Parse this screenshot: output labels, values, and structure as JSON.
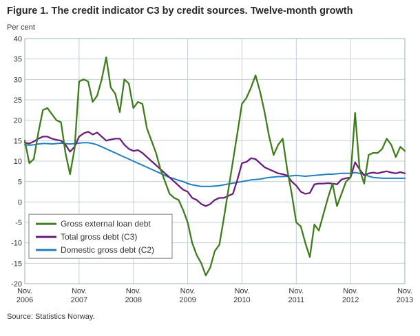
{
  "title": "Figure 1. The credit indicator C3 by credit sources. Twelve-month growth",
  "y_axis_label": "Per cent",
  "source": "Source: Statistics Norway.",
  "colors": {
    "grid": "#c3d0da",
    "border": "#9db0bd",
    "tick_text": "#333333",
    "legend_border": "#7f7f7f"
  },
  "chart_data": {
    "type": "line",
    "title": "Figure 1. The credit indicator C3 by credit sources. Twelve-month growth",
    "ylabel": "Per cent",
    "ylim": [
      -20,
      40
    ],
    "y_tick_step": 5,
    "grid": true,
    "legend_position": "inside-lower-left",
    "x_tick_month": "Nov.",
    "x_tick_years": [
      "2006",
      "2007",
      "2008",
      "2009",
      "2010",
      "2011",
      "2012",
      "2013"
    ],
    "x_tick_positions": [
      0,
      12,
      24,
      36,
      48,
      60,
      72,
      84
    ],
    "x_unit": "monthly points from Nov. 2006 to Nov. 2013",
    "series": [
      {
        "name": "Gross external loan debt",
        "color": "#3f7d1c",
        "values": [
          15.0,
          9.5,
          10.5,
          17.0,
          22.5,
          23.0,
          21.5,
          20.0,
          19.5,
          12.0,
          6.8,
          13.0,
          29.5,
          30.0,
          29.5,
          24.5,
          26.0,
          30.0,
          35.4,
          28.0,
          26.5,
          22.0,
          30.0,
          29.0,
          23.0,
          24.5,
          24.0,
          18.0,
          15.0,
          12.0,
          8.0,
          5.0,
          2.0,
          1.0,
          0.5,
          -2.0,
          -5.0,
          -10.0,
          -13.0,
          -15.0,
          -18.0,
          -16.0,
          -12.0,
          -10.5,
          -4.0,
          3.0,
          10.0,
          17.0,
          24.0,
          25.5,
          28.0,
          31.0,
          27.0,
          22.0,
          16.0,
          11.5,
          14.0,
          15.5,
          8.0,
          2.0,
          -5.0,
          -6.0,
          -10.0,
          -13.5,
          -5.5,
          -7.0,
          -3.0,
          1.0,
          4.5,
          -1.0,
          2.0,
          5.0,
          6.0,
          21.8,
          8.0,
          4.5,
          11.5,
          12.0,
          12.0,
          13.0,
          15.5,
          14.0,
          11.0,
          13.5,
          12.5
        ]
      },
      {
        "name": "Total gross debt (C3)",
        "color": "#6a1f7b",
        "values": [
          14.5,
          14.3,
          14.8,
          15.5,
          16.0,
          16.0,
          15.5,
          15.2,
          15.0,
          14.0,
          12.3,
          13.5,
          16.0,
          16.8,
          17.2,
          16.5,
          17.0,
          16.0,
          15.0,
          15.3,
          15.5,
          15.5,
          14.0,
          13.0,
          12.5,
          12.7,
          12.0,
          11.0,
          10.0,
          9.0,
          8.0,
          7.0,
          6.0,
          5.0,
          4.0,
          3.0,
          2.5,
          1.0,
          0.5,
          -0.5,
          -1.0,
          -0.5,
          0.5,
          1.0,
          1.0,
          1.5,
          2.0,
          5.5,
          9.5,
          9.8,
          10.7,
          10.5,
          9.5,
          8.5,
          8.0,
          7.5,
          7.0,
          6.8,
          6.5,
          5.0,
          4.0,
          2.5,
          2.0,
          2.2,
          4.3,
          4.5,
          4.5,
          4.6,
          4.5,
          4.3,
          5.5,
          5.8,
          6.0,
          9.7,
          8.0,
          6.5,
          7.0,
          7.2,
          7.0,
          7.3,
          7.5,
          7.2,
          7.0,
          7.3,
          7.0
        ]
      },
      {
        "name": "Domestic gross debt (C2)",
        "color": "#1e7fc2",
        "values": [
          14.0,
          13.9,
          14.0,
          14.2,
          14.3,
          14.3,
          14.2,
          14.3,
          14.4,
          14.3,
          14.2,
          14.3,
          14.4,
          14.5,
          14.5,
          14.3,
          14.0,
          13.5,
          13.0,
          12.5,
          12.0,
          11.5,
          11.0,
          10.5,
          10.0,
          9.5,
          9.0,
          8.5,
          8.0,
          7.5,
          7.0,
          6.5,
          6.0,
          5.7,
          5.3,
          5.0,
          4.5,
          4.2,
          4.0,
          3.8,
          3.8,
          3.8,
          3.9,
          4.0,
          4.2,
          4.4,
          4.6,
          4.8,
          5.0,
          5.2,
          5.4,
          5.5,
          5.6,
          5.8,
          6.0,
          6.1,
          6.2,
          6.2,
          6.3,
          6.4,
          6.5,
          6.4,
          6.3,
          6.4,
          6.5,
          6.6,
          6.7,
          6.8,
          6.8,
          6.9,
          7.0,
          7.0,
          7.0,
          7.2,
          7.0,
          6.8,
          6.3,
          6.0,
          5.9,
          5.8,
          5.8,
          5.8,
          5.8,
          5.8,
          5.8
        ]
      }
    ]
  }
}
